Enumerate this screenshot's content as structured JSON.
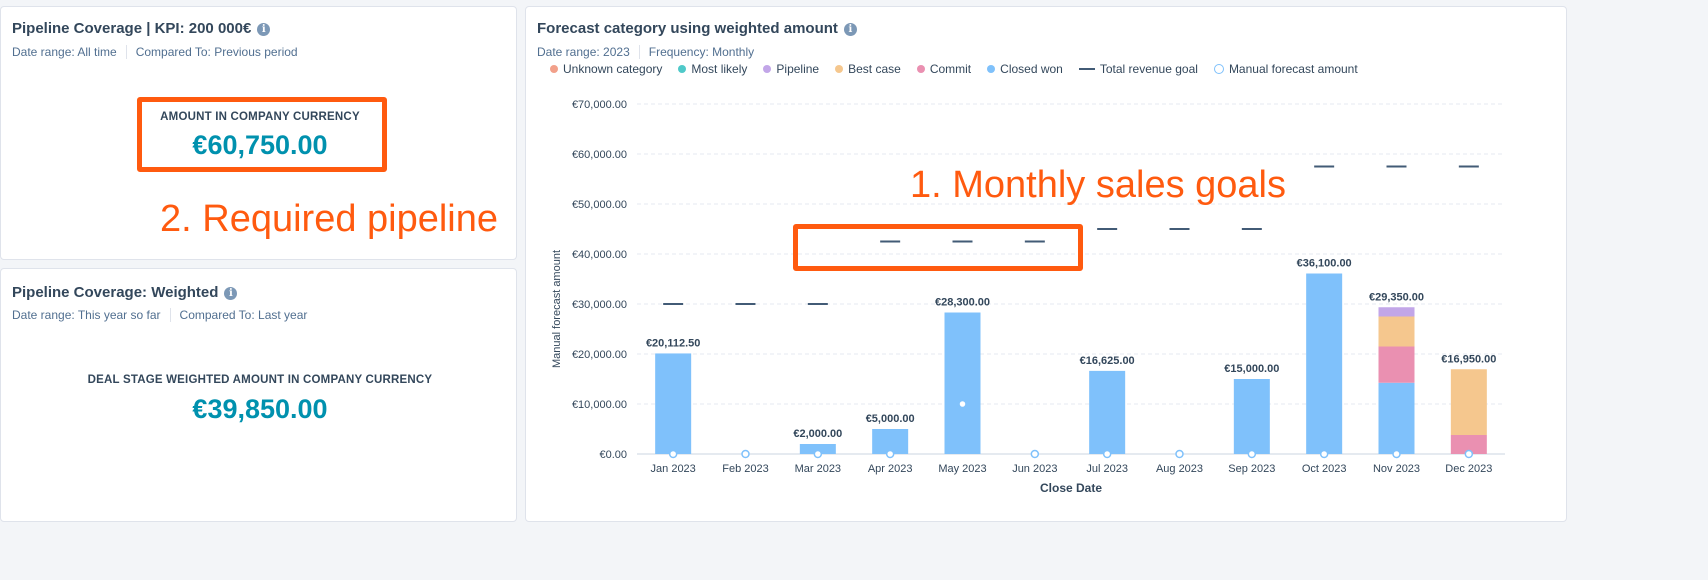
{
  "cards": [
    {
      "title": "Pipeline Coverage | KPI: 200 000€",
      "date_range": "Date range: All time",
      "compared": "Compared To: Previous period",
      "kpi_label": "AMOUNT IN COMPANY CURRENCY",
      "kpi_value": "€60,750.00"
    },
    {
      "title": "Pipeline Coverage: Weighted",
      "date_range": "Date range: This year so far",
      "compared": "Compared To: Last year",
      "kpi_label": "DEAL STAGE WEIGHTED AMOUNT IN COMPANY CURRENCY",
      "kpi_value": "€39,850.00"
    }
  ],
  "chart_card": {
    "title": "Forecast category using weighted amount",
    "date_range": "Date range: 2023",
    "frequency": "Frequency: Monthly"
  },
  "annotations": {
    "goals": "1. Monthly sales goals",
    "pipeline": "2. Required pipeline"
  },
  "chart_data": {
    "type": "bar",
    "title": "Forecast category using weighted amount",
    "xlabel": "Close Date",
    "ylabel": "Manual forecast amount",
    "ylim": [
      0,
      70000
    ],
    "yticks": [
      "€0.00",
      "€10,000.00",
      "€20,000.00",
      "€30,000.00",
      "€40,000.00",
      "€50,000.00",
      "€60,000.00",
      "€70,000.00"
    ],
    "categories": [
      "Jan 2023",
      "Feb 2023",
      "Mar 2023",
      "Apr 2023",
      "May 2023",
      "Jun 2023",
      "Jul 2023",
      "Aug 2023",
      "Sep 2023",
      "Oct 2023",
      "Nov 2023",
      "Dec 2023"
    ],
    "legend": [
      {
        "name": "Unknown category",
        "color": "#f2a08a",
        "kind": "dot"
      },
      {
        "name": "Most likely",
        "color": "#4fc9c9",
        "kind": "dot"
      },
      {
        "name": "Pipeline",
        "color": "#c2a6e8",
        "kind": "dot"
      },
      {
        "name": "Best case",
        "color": "#f5c78e",
        "kind": "dot"
      },
      {
        "name": "Commit",
        "color": "#ea90b1",
        "kind": "dot"
      },
      {
        "name": "Closed won",
        "color": "#7fc1fb",
        "kind": "dot"
      },
      {
        "name": "Total revenue goal",
        "color": "#425b76",
        "kind": "line"
      },
      {
        "name": "Manual forecast amount",
        "color": "#7fc1fb",
        "kind": "circle"
      }
    ],
    "series": [
      {
        "name": "Closed won",
        "color": "#7fc1fb",
        "values": [
          20112.5,
          0,
          2000,
          5000,
          28300,
          0,
          16625,
          0,
          15000,
          36100,
          14250,
          0
        ]
      },
      {
        "name": "Commit",
        "color": "#ea90b1",
        "values": [
          0,
          0,
          0,
          0,
          0,
          0,
          0,
          0,
          0,
          0,
          7250,
          3800
        ]
      },
      {
        "name": "Best case",
        "color": "#f5c78e",
        "values": [
          0,
          0,
          0,
          0,
          0,
          0,
          0,
          0,
          0,
          0,
          6000,
          13150
        ]
      },
      {
        "name": "Pipeline",
        "color": "#c2a6e8",
        "values": [
          0,
          0,
          0,
          0,
          0,
          0,
          0,
          0,
          0,
          0,
          1850,
          0
        ]
      }
    ],
    "totals_labels": [
      "€20,112.50",
      "",
      "€2,000.00",
      "€5,000.00",
      "€28,300.00",
      "",
      "€16,625.00",
      "",
      "€15,000.00",
      "€36,100.00",
      "€29,350.00",
      "€16,950.00"
    ],
    "goal": [
      30000,
      30000,
      30000,
      42500,
      42500,
      42500,
      45000,
      45000,
      45000,
      57500,
      57500,
      57500
    ],
    "manual_forecast": [
      0,
      0,
      0,
      0,
      10000,
      0,
      0,
      0,
      0,
      0,
      0,
      0
    ]
  }
}
